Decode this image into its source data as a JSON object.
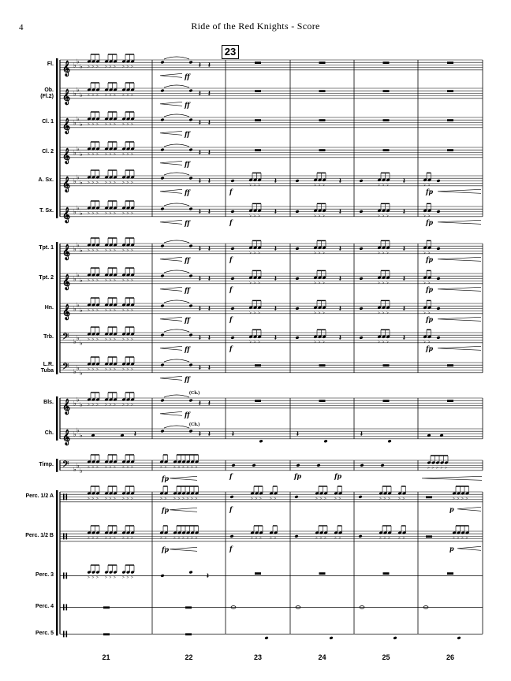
{
  "header": {
    "page_number": "4",
    "title": "Ride of the Red Knights - Score"
  },
  "rehearsal_mark": "23",
  "instruments": [
    {
      "label": "Fl.",
      "clef": "treble",
      "group": "winds"
    },
    {
      "label": "Ob.\n(Fl.2)",
      "clef": "treble",
      "group": "winds"
    },
    {
      "label": "Cl. 1",
      "clef": "treble",
      "group": "winds"
    },
    {
      "label": "Cl. 2",
      "clef": "treble",
      "group": "winds"
    },
    {
      "label": "A. Sx.",
      "clef": "treble",
      "group": "winds"
    },
    {
      "label": "T. Sx.",
      "clef": "treble",
      "group": "winds"
    },
    {
      "label": "Tpt. 1",
      "clef": "treble",
      "group": "brass"
    },
    {
      "label": "Tpt. 2",
      "clef": "treble",
      "group": "brass"
    },
    {
      "label": "Hn.",
      "clef": "treble",
      "group": "brass"
    },
    {
      "label": "Trb.",
      "clef": "bass",
      "group": "brass"
    },
    {
      "label": "L.R.\nTuba",
      "clef": "bass",
      "group": "brass"
    },
    {
      "label": "Bls.",
      "clef": "treble",
      "group": "mallets"
    },
    {
      "label": "Ch.",
      "clef": "treble",
      "group": "mallets"
    },
    {
      "label": "Timp.",
      "clef": "bass",
      "group": "timp"
    },
    {
      "label": "Perc. 1/2 A",
      "clef": "perc",
      "group": "perc"
    },
    {
      "label": "Perc. 1/2 B",
      "clef": "perc",
      "group": "perc"
    },
    {
      "label": "Perc. 3",
      "clef": "perc",
      "group": "perc"
    },
    {
      "label": "Perc. 4",
      "clef": "perc",
      "group": "perc"
    },
    {
      "label": "Perc. 5",
      "clef": "perc",
      "group": "perc"
    }
  ],
  "measure_numbers": [
    "21",
    "22",
    "23",
    "24",
    "25",
    "26"
  ],
  "dynamics": {
    "ff": "ff",
    "f": "f",
    "fp": "fp",
    "p": "p"
  },
  "annotations": {
    "chimes_cue": "(Ch.)"
  }
}
